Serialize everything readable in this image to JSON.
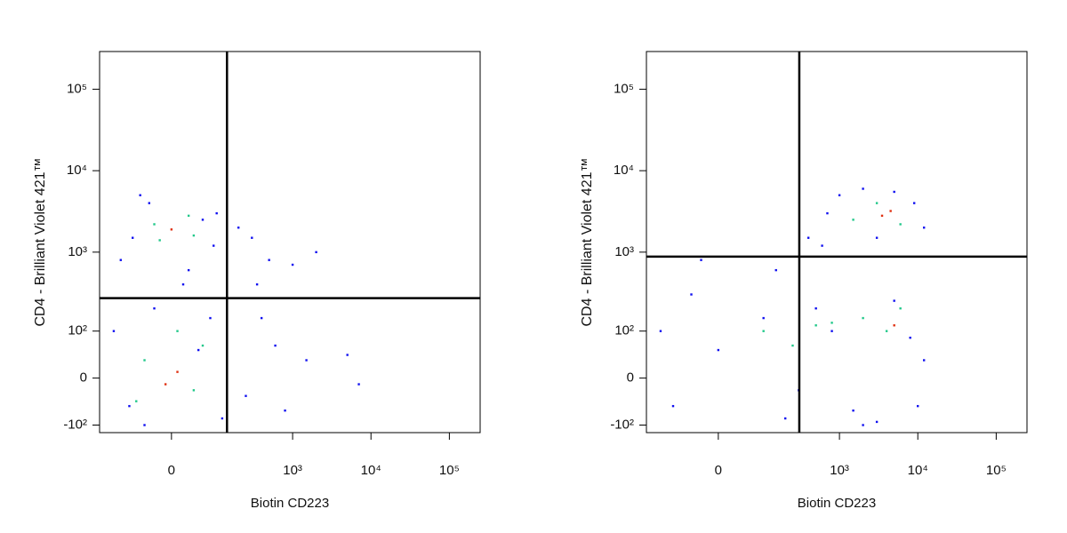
{
  "chart_data": [
    {
      "type": "scatter",
      "xlabel": "Biotin CD223",
      "ylabel": "CD4 - Brilliant Violet 421™",
      "scale": "biexponential",
      "xlim": [
        -232,
        247000
      ],
      "ylim": [
        -127,
        290000
      ],
      "xticks": [
        0,
        {
          "value": 1000,
          "label": "10³"
        },
        {
          "value": 10000,
          "label": "10⁴"
        },
        {
          "value": 100000,
          "label": "10⁵"
        }
      ],
      "yticks": [
        {
          "value": -100,
          "label": "-10²"
        },
        0,
        {
          "value": 100,
          "label": "10²"
        },
        {
          "value": 1000,
          "label": "10³"
        },
        {
          "value": 10000,
          "label": "10⁴"
        },
        {
          "value": 100000,
          "label": "10⁵"
        }
      ],
      "gate_x": 140,
      "gate_y": 270,
      "series": [
        {
          "color": "#1010f0",
          "x": [
            -80,
            60,
            -40,
            90,
            -120,
            30,
            100,
            -60,
            20,
            -30,
            50,
            -90,
            120,
            -150,
            80,
            -50,
            200,
            300,
            500,
            1000,
            400,
            600,
            1500,
            5000,
            7000,
            250,
            800,
            350,
            2000
          ],
          "y": [
            1500,
            2500,
            4000,
            1200,
            800,
            600,
            3000,
            5000,
            400,
            200,
            50,
            -50,
            -80,
            100,
            150,
            -100,
            2000,
            1500,
            800,
            700,
            150,
            60,
            30,
            40,
            -10,
            -30,
            -60,
            400,
            1000
          ]
        },
        {
          "color": "#22c88a",
          "x": [
            -30,
            40,
            -20,
            30,
            -50,
            40,
            10,
            -70,
            60
          ],
          "y": [
            2200,
            1600,
            1400,
            2800,
            30,
            -20,
            100,
            -40,
            60
          ]
        },
        {
          "color": "#e03010",
          "x": [
            0,
            10,
            -10
          ],
          "y": [
            1900,
            10,
            -10
          ]
        }
      ]
    },
    {
      "type": "scatter",
      "xlabel": "Biotin CD223",
      "ylabel": "CD4 - Brilliant Violet 421™",
      "scale": "biexponential",
      "xlim": [
        -232,
        247000
      ],
      "ylim": [
        -127,
        290000
      ],
      "xticks": [
        0,
        {
          "value": 1000,
          "label": "10³"
        },
        {
          "value": 10000,
          "label": "10⁴"
        },
        {
          "value": 100000,
          "label": "10⁵"
        }
      ],
      "yticks": [
        {
          "value": -100,
          "label": "-10²"
        },
        0,
        {
          "value": 100,
          "label": "10²"
        },
        {
          "value": 1000,
          "label": "10³"
        },
        {
          "value": 10000,
          "label": "10⁴"
        },
        {
          "value": 100000,
          "label": "10⁵"
        }
      ],
      "gate_x": 305,
      "gate_y": 880,
      "series": [
        {
          "color": "#1010f0",
          "x": [
            -150,
            -100,
            0,
            100,
            200,
            300,
            500,
            800,
            1500,
            3000,
            5000,
            8000,
            12000,
            -50,
            150,
            400,
            700,
            1000,
            2000,
            5000,
            9000,
            12000,
            3000,
            600,
            -30,
            10000,
            2000
          ],
          "y": [
            100,
            -50,
            50,
            150,
            -80,
            -20,
            200,
            100,
            -60,
            -90,
            250,
            80,
            30,
            300,
            600,
            1500,
            3000,
            5000,
            6000,
            5500,
            4000,
            2000,
            1500,
            1200,
            800,
            -50,
            -100
          ]
        },
        {
          "color": "#22c88a",
          "x": [
            100,
            250,
            500,
            2000,
            4000,
            6000,
            1500,
            6000,
            3000,
            800
          ],
          "y": [
            100,
            60,
            120,
            150,
            100,
            200,
            2500,
            2200,
            4000,
            130
          ]
        },
        {
          "color": "#e03010",
          "x": [
            3500,
            4500,
            5000
          ],
          "y": [
            2800,
            3200,
            120
          ]
        }
      ]
    }
  ]
}
